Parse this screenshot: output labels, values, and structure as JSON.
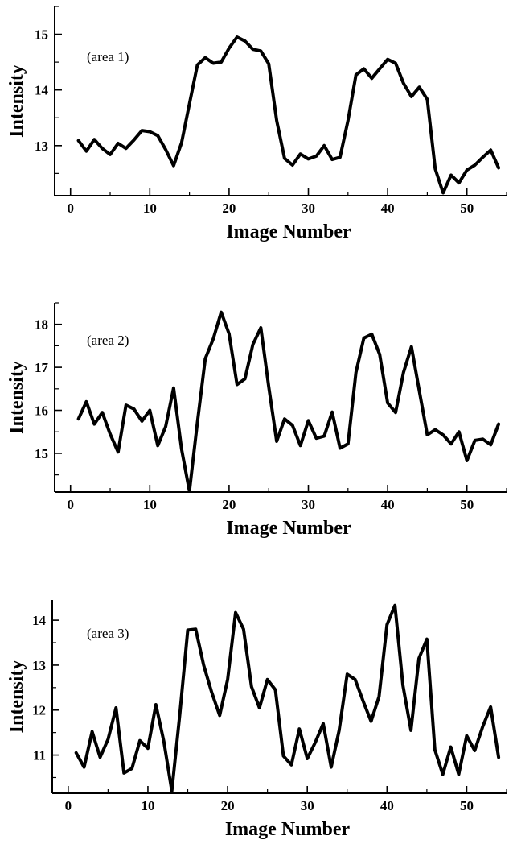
{
  "chart_data": [
    {
      "type": "line",
      "annotation": "(area 1)",
      "xlabel": "Image Number",
      "ylabel": "Intensity",
      "xlim": [
        -2,
        55
      ],
      "ylim": [
        12.1,
        15.5
      ],
      "xticks": [
        0,
        10,
        20,
        30,
        40,
        50
      ],
      "yticks": [
        13,
        14,
        15
      ],
      "x": [
        1,
        2,
        3,
        4,
        5,
        6,
        7,
        8,
        9,
        10,
        11,
        12,
        13,
        14,
        15,
        16,
        17,
        18,
        19,
        20,
        21,
        22,
        23,
        24,
        25,
        26,
        27,
        28,
        29,
        30,
        31,
        32,
        33,
        34,
        35,
        36,
        37,
        38,
        39,
        40,
        41,
        42,
        43,
        44,
        45,
        46,
        47,
        48,
        49,
        50,
        51,
        52,
        53,
        54
      ],
      "series": [
        {
          "values": [
            13.09,
            12.9,
            13.11,
            12.95,
            12.84,
            13.04,
            12.95,
            13.1,
            13.27,
            13.25,
            13.18,
            12.93,
            12.64,
            13.05,
            13.75,
            14.45,
            14.58,
            14.48,
            14.5,
            14.75,
            14.95,
            14.88,
            14.73,
            14.7,
            14.47,
            13.45,
            12.77,
            12.65,
            12.85,
            12.76,
            12.81,
            13.0,
            12.75,
            12.79,
            13.45,
            14.27,
            14.38,
            14.21,
            14.38,
            14.55,
            14.48,
            14.12,
            13.88,
            14.05,
            13.83,
            12.58,
            12.15,
            12.47,
            12.33,
            12.56,
            12.65,
            12.79,
            12.92,
            12.6
          ]
        }
      ]
    },
    {
      "type": "line",
      "annotation": "(area 2)",
      "xlabel": "Image Number",
      "ylabel": "Intensity",
      "xlim": [
        -2,
        55
      ],
      "ylim": [
        14.1,
        18.5
      ],
      "xticks": [
        0,
        10,
        20,
        30,
        40,
        50
      ],
      "yticks": [
        15,
        16,
        17,
        18
      ],
      "x": [
        1,
        2,
        3,
        4,
        5,
        6,
        7,
        8,
        9,
        10,
        11,
        12,
        13,
        14,
        15,
        16,
        17,
        18,
        19,
        20,
        21,
        22,
        23,
        24,
        25,
        26,
        27,
        28,
        29,
        30,
        31,
        32,
        33,
        34,
        35,
        36,
        37,
        38,
        39,
        40,
        41,
        42,
        43,
        44,
        45,
        46,
        47,
        48,
        49,
        50,
        51,
        52,
        53,
        54
      ],
      "series": [
        {
          "values": [
            15.8,
            16.2,
            15.68,
            15.95,
            15.45,
            15.03,
            16.12,
            16.03,
            15.75,
            16.0,
            15.18,
            15.62,
            16.52,
            15.1,
            14.12,
            15.72,
            17.2,
            17.66,
            18.28,
            17.78,
            16.6,
            16.73,
            17.53,
            17.92,
            16.55,
            15.28,
            15.8,
            15.65,
            15.18,
            15.76,
            15.35,
            15.4,
            15.96,
            15.12,
            15.22,
            16.88,
            17.68,
            17.77,
            17.3,
            16.17,
            15.95,
            16.88,
            17.48,
            16.45,
            15.43,
            15.55,
            15.43,
            15.22,
            15.5,
            14.83,
            15.3,
            15.33,
            15.2,
            15.68
          ]
        }
      ]
    },
    {
      "type": "line",
      "annotation": "(area 3)",
      "xlabel": "Image Number",
      "ylabel": "Intensity",
      "xlim": [
        -2,
        55
      ],
      "ylim": [
        10.15,
        14.45
      ],
      "xticks": [
        0,
        10,
        20,
        30,
        40,
        50
      ],
      "yticks": [
        11,
        12,
        13,
        14
      ],
      "x": [
        1,
        2,
        3,
        4,
        5,
        6,
        7,
        8,
        9,
        10,
        11,
        12,
        13,
        14,
        15,
        16,
        17,
        18,
        19,
        20,
        21,
        22,
        23,
        24,
        25,
        26,
        27,
        28,
        29,
        30,
        31,
        32,
        33,
        34,
        35,
        36,
        37,
        38,
        39,
        40,
        41,
        42,
        43,
        44,
        45,
        46,
        47,
        48,
        49,
        50,
        51,
        52,
        53,
        54
      ],
      "series": [
        {
          "values": [
            11.05,
            10.73,
            11.52,
            10.95,
            11.35,
            12.05,
            10.6,
            10.7,
            11.32,
            11.15,
            12.12,
            11.3,
            10.2,
            11.9,
            13.78,
            13.8,
            13.0,
            12.4,
            11.88,
            12.68,
            14.17,
            13.8,
            12.52,
            12.05,
            12.68,
            12.45,
            10.98,
            10.78,
            11.58,
            10.92,
            11.28,
            11.7,
            10.73,
            11.55,
            12.8,
            12.68,
            12.2,
            11.75,
            12.3,
            13.9,
            14.33,
            12.55,
            11.55,
            13.15,
            13.58,
            11.12,
            10.57,
            11.18,
            10.57,
            11.43,
            11.1,
            11.63,
            12.07,
            10.95
          ]
        }
      ]
    }
  ]
}
